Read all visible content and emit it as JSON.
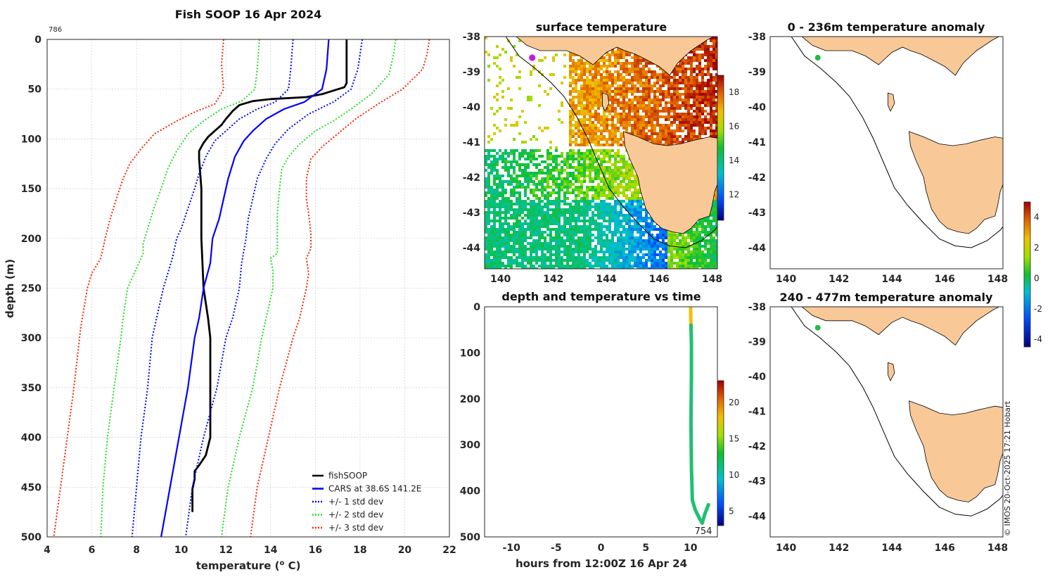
{
  "colors": {
    "fishSOOP": "#000000",
    "cars": "#0000ff",
    "std1": "#0000ff",
    "std2": "#22dd22",
    "std3": "#ff2200",
    "land": "#f8c897",
    "grid": "#cccccc"
  },
  "profile": {
    "title": "Fish SOOP 16 Apr 2024",
    "corner_label": "786",
    "xlabel_pre": "temperature (",
    "xlabel_sup": "o",
    "xlabel_post": " C)",
    "ylabel": "depth (m)",
    "xlim": [
      4,
      22
    ],
    "ylim": [
      0,
      500
    ],
    "xticks": [
      4,
      6,
      8,
      10,
      12,
      14,
      16,
      18,
      20,
      22
    ],
    "yticks": [
      0,
      50,
      100,
      150,
      200,
      250,
      300,
      350,
      400,
      450,
      500
    ],
    "legend": [
      {
        "label": "fishSOOP",
        "key": "fishSOOP",
        "dotted": false
      },
      {
        "label": "CARS at 38.6S 141.2E",
        "key": "cars",
        "dotted": false
      },
      {
        "label": "+/- 1 std dev",
        "key": "std1",
        "dotted": true
      },
      {
        "label": "+/- 2 std dev",
        "key": "std2",
        "dotted": true
      },
      {
        "label": "+/- 3 std dev",
        "key": "std3",
        "dotted": true
      }
    ]
  },
  "chart_data": [
    {
      "type": "line",
      "title": "Fish SOOP 16 Apr 2024",
      "xlabel": "temperature (o C)",
      "ylabel": "depth (m)",
      "xlim": [
        4,
        22
      ],
      "ylim": [
        500,
        0
      ],
      "series": [
        {
          "name": "fishSOOP",
          "color": "#000000",
          "style": "solid",
          "points": [
            [
              17.4,
              0
            ],
            [
              17.4,
              20
            ],
            [
              17.4,
              44
            ],
            [
              17.3,
              48
            ],
            [
              16.3,
              55
            ],
            [
              15.6,
              58
            ],
            [
              14.0,
              60
            ],
            [
              13.2,
              62
            ],
            [
              12.6,
              66
            ],
            [
              12.3,
              72
            ],
            [
              12.0,
              80
            ],
            [
              11.8,
              86
            ],
            [
              11.5,
              92
            ],
            [
              11.2,
              98
            ],
            [
              11.0,
              104
            ],
            [
              10.9,
              108
            ],
            [
              10.8,
              112
            ],
            [
              10.8,
              120
            ],
            [
              10.9,
              150
            ],
            [
              10.9,
              200
            ],
            [
              11.0,
              250
            ],
            [
              11.2,
              280
            ],
            [
              11.3,
              300
            ],
            [
              11.3,
              350
            ],
            [
              11.3,
              400
            ],
            [
              11.1,
              418
            ],
            [
              10.8,
              428
            ],
            [
              10.6,
              434
            ],
            [
              10.6,
              442
            ],
            [
              10.5,
              452
            ],
            [
              10.5,
              465
            ],
            [
              10.5,
              475
            ]
          ]
        },
        {
          "name": "CARS at 38.6S 141.2E",
          "color": "#0000ff",
          "style": "solid",
          "points": [
            [
              16.6,
              0
            ],
            [
              16.5,
              30
            ],
            [
              16.3,
              50
            ],
            [
              15.5,
              63
            ],
            [
              14.6,
              70
            ],
            [
              13.8,
              80
            ],
            [
              13.2,
              92
            ],
            [
              12.8,
              102
            ],
            [
              12.4,
              118
            ],
            [
              12.1,
              140
            ],
            [
              11.9,
              160
            ],
            [
              11.7,
              180
            ],
            [
              11.4,
              200
            ],
            [
              11.3,
              225
            ],
            [
              11.0,
              250
            ],
            [
              10.8,
              280
            ],
            [
              10.6,
              300
            ],
            [
              10.3,
              350
            ],
            [
              9.9,
              400
            ],
            [
              9.5,
              450
            ],
            [
              9.1,
              500
            ]
          ]
        },
        {
          "name": "+1 std dev",
          "color": "#0000ff",
          "style": "dotted",
          "points": [
            [
              18.1,
              0
            ],
            [
              17.9,
              30
            ],
            [
              17.6,
              50
            ],
            [
              16.8,
              63
            ],
            [
              15.7,
              75
            ],
            [
              14.8,
              90
            ],
            [
              14.2,
              105
            ],
            [
              13.8,
              120
            ],
            [
              13.4,
              140
            ],
            [
              13.2,
              160
            ],
            [
              13.0,
              180
            ],
            [
              12.9,
              200
            ],
            [
              12.7,
              225
            ],
            [
              12.6,
              250
            ],
            [
              12.3,
              280
            ],
            [
              12.0,
              300
            ],
            [
              11.6,
              350
            ],
            [
              11.0,
              400
            ],
            [
              10.5,
              450
            ],
            [
              10.2,
              500
            ]
          ]
        },
        {
          "name": "-1 std dev",
          "color": "#0000ff",
          "style": "dotted",
          "points": [
            [
              15.0,
              0
            ],
            [
              14.9,
              30
            ],
            [
              14.8,
              50
            ],
            [
              14.2,
              63
            ],
            [
              13.4,
              70
            ],
            [
              12.6,
              80
            ],
            [
              12.0,
              92
            ],
            [
              11.5,
              102
            ],
            [
              11.1,
              118
            ],
            [
              10.8,
              135
            ],
            [
              10.6,
              150
            ],
            [
              10.3,
              170
            ],
            [
              10.0,
              190
            ],
            [
              9.8,
              200
            ],
            [
              9.6,
              220
            ],
            [
              9.2,
              250
            ],
            [
              8.9,
              280
            ],
            [
              8.7,
              300
            ],
            [
              8.5,
              350
            ],
            [
              8.2,
              400
            ],
            [
              8.0,
              450
            ],
            [
              7.8,
              500
            ]
          ]
        },
        {
          "name": "+2 std dev",
          "color": "#22dd22",
          "style": "dotted",
          "points": [
            [
              19.6,
              0
            ],
            [
              19.5,
              15
            ],
            [
              19.3,
              35
            ],
            [
              18.5,
              55
            ],
            [
              17.6,
              70
            ],
            [
              16.8,
              82
            ],
            [
              16.0,
              92
            ],
            [
              15.3,
              105
            ],
            [
              14.8,
              118
            ],
            [
              14.5,
              130
            ],
            [
              14.4,
              150
            ],
            [
              14.3,
              175
            ],
            [
              14.3,
              200
            ],
            [
              14.3,
              215
            ],
            [
              14.0,
              220
            ],
            [
              14.1,
              232
            ],
            [
              14.1,
              250
            ],
            [
              13.8,
              280
            ],
            [
              13.6,
              300
            ],
            [
              13.2,
              350
            ],
            [
              12.6,
              400
            ],
            [
              12.1,
              450
            ],
            [
              11.8,
              500
            ]
          ]
        },
        {
          "name": "-2 std dev",
          "color": "#22dd22",
          "style": "dotted",
          "points": [
            [
              13.5,
              0
            ],
            [
              13.4,
              30
            ],
            [
              13.3,
              50
            ],
            [
              12.7,
              62
            ],
            [
              11.8,
              70
            ],
            [
              11.0,
              82
            ],
            [
              10.3,
              95
            ],
            [
              9.8,
              112
            ],
            [
              9.4,
              130
            ],
            [
              9.1,
              150
            ],
            [
              8.8,
              168
            ],
            [
              8.5,
              190
            ],
            [
              8.3,
              205
            ],
            [
              8.3,
              215
            ],
            [
              7.9,
              235
            ],
            [
              7.6,
              250
            ],
            [
              7.4,
              280
            ],
            [
              7.3,
              300
            ],
            [
              7.0,
              350
            ],
            [
              6.7,
              400
            ],
            [
              6.5,
              450
            ],
            [
              6.4,
              500
            ]
          ]
        },
        {
          "name": "+3 std dev",
          "color": "#ff2200",
          "style": "dotted",
          "points": [
            [
              21.1,
              0
            ],
            [
              21.0,
              15
            ],
            [
              20.8,
              30
            ],
            [
              19.9,
              50
            ],
            [
              18.8,
              65
            ],
            [
              17.8,
              80
            ],
            [
              17.0,
              95
            ],
            [
              16.3,
              108
            ],
            [
              15.8,
              120
            ],
            [
              15.6,
              140
            ],
            [
              15.6,
              160
            ],
            [
              15.7,
              175
            ],
            [
              15.8,
              195
            ],
            [
              15.8,
              210
            ],
            [
              15.6,
              220
            ],
            [
              15.7,
              235
            ],
            [
              15.6,
              250
            ],
            [
              15.3,
              280
            ],
            [
              15.0,
              300
            ],
            [
              14.4,
              350
            ],
            [
              13.9,
              400
            ],
            [
              13.4,
              450
            ],
            [
              13.1,
              500
            ]
          ]
        },
        {
          "name": "-3 std dev",
          "color": "#ff2200",
          "style": "dotted",
          "points": [
            [
              11.9,
              0
            ],
            [
              11.8,
              25
            ],
            [
              11.9,
              50
            ],
            [
              11.5,
              65
            ],
            [
              10.7,
              72
            ],
            [
              9.8,
              82
            ],
            [
              8.8,
              95
            ],
            [
              8.2,
              110
            ],
            [
              7.7,
              125
            ],
            [
              7.4,
              140
            ],
            [
              7.1,
              160
            ],
            [
              6.8,
              182
            ],
            [
              6.6,
              200
            ],
            [
              6.4,
              220
            ],
            [
              6.0,
              235
            ],
            [
              5.8,
              250
            ],
            [
              5.5,
              290
            ],
            [
              5.2,
              350
            ],
            [
              4.9,
              400
            ],
            [
              4.6,
              450
            ],
            [
              4.3,
              500
            ]
          ]
        }
      ]
    },
    {
      "type": "heatmap",
      "title": "surface temperature",
      "xlim": [
        139.4,
        148.2
      ],
      "ylim": [
        -44.6,
        -38
      ],
      "xticks": [
        140,
        142,
        144,
        146,
        148
      ],
      "yticks": [
        -38,
        -39,
        -40,
        -41,
        -42,
        -43,
        -44
      ],
      "colorbar": {
        "min": 10.5,
        "max": 19,
        "ticks": [
          12,
          14,
          16,
          18
        ]
      },
      "marker": {
        "lon": 141.2,
        "lat": -38.6
      }
    },
    {
      "type": "scatter",
      "title": "depth and temperature vs time",
      "xlabel": "hours from 12:00Z 16 Apr 24",
      "xlim": [
        -13,
        13
      ],
      "ylim": [
        500,
        0
      ],
      "xticks": [
        -10,
        -5,
        0,
        5,
        10
      ],
      "yticks": [
        0,
        100,
        200,
        300,
        400,
        500
      ],
      "colorbar": {
        "min": 3,
        "max": 23,
        "ticks": [
          5,
          10,
          15,
          20
        ]
      },
      "annotation": "754",
      "track": [
        [
          10.0,
          0
        ],
        [
          10.05,
          40
        ],
        [
          10.1,
          80
        ],
        [
          10.1,
          150
        ],
        [
          10.05,
          250
        ],
        [
          10.1,
          350
        ],
        [
          10.2,
          420
        ],
        [
          10.5,
          440
        ],
        [
          11.0,
          460
        ],
        [
          11.3,
          470
        ],
        [
          11.6,
          450
        ],
        [
          12.0,
          430
        ]
      ]
    },
    {
      "type": "map",
      "title": "0 - 236m temperature anomaly",
      "xlim": [
        139.4,
        148.2
      ],
      "ylim": [
        -44.6,
        -38
      ],
      "xticks": [
        140,
        142,
        144,
        146,
        148
      ],
      "yticks": [
        -38,
        -39,
        -40,
        -41,
        -42,
        -43,
        -44
      ],
      "colorbar": {
        "min": -4.5,
        "max": 5,
        "ticks": [
          4,
          2,
          0,
          -2,
          -4
        ]
      }
    },
    {
      "type": "map",
      "title": "240 - 477m temperature anomaly",
      "xlim": [
        139.4,
        148.2
      ],
      "ylim": [
        -44.6,
        -38
      ],
      "xticks": [
        140,
        142,
        144,
        146,
        148
      ],
      "yticks": [
        -38,
        -39,
        -40,
        -41,
        -42,
        -43,
        -44
      ]
    }
  ],
  "sst_ticks": [
    "140",
    "142",
    "144",
    "146",
    "148"
  ],
  "sst_yticks": [
    "-38",
    "-39",
    "-40",
    "-41",
    "-42",
    "-43",
    "-44"
  ],
  "sst_cb_ticks": [
    "18",
    "16",
    "14",
    "12"
  ],
  "time_xticks": [
    "-10",
    "-5",
    "0",
    "5",
    "10"
  ],
  "time_yticks": [
    "0",
    "100",
    "200",
    "300",
    "400",
    "500"
  ],
  "time_cb_ticks": [
    "20",
    "15",
    "10",
    "5"
  ],
  "anom_cb_ticks": [
    "4",
    "2",
    "0",
    "-2",
    "-4"
  ],
  "labels": {
    "sst_title": "surface temperature",
    "time_title": "depth and temperature vs time",
    "time_xlabel": "hours from 12:00Z 16 Apr 24",
    "time_annotation": "754",
    "anom1_title": "0 - 236m temperature anomaly",
    "anom2_title": "240 - 477m temperature anomaly",
    "copyright": "© IMOS 20-Oct-2025 17:21 Hobart"
  }
}
